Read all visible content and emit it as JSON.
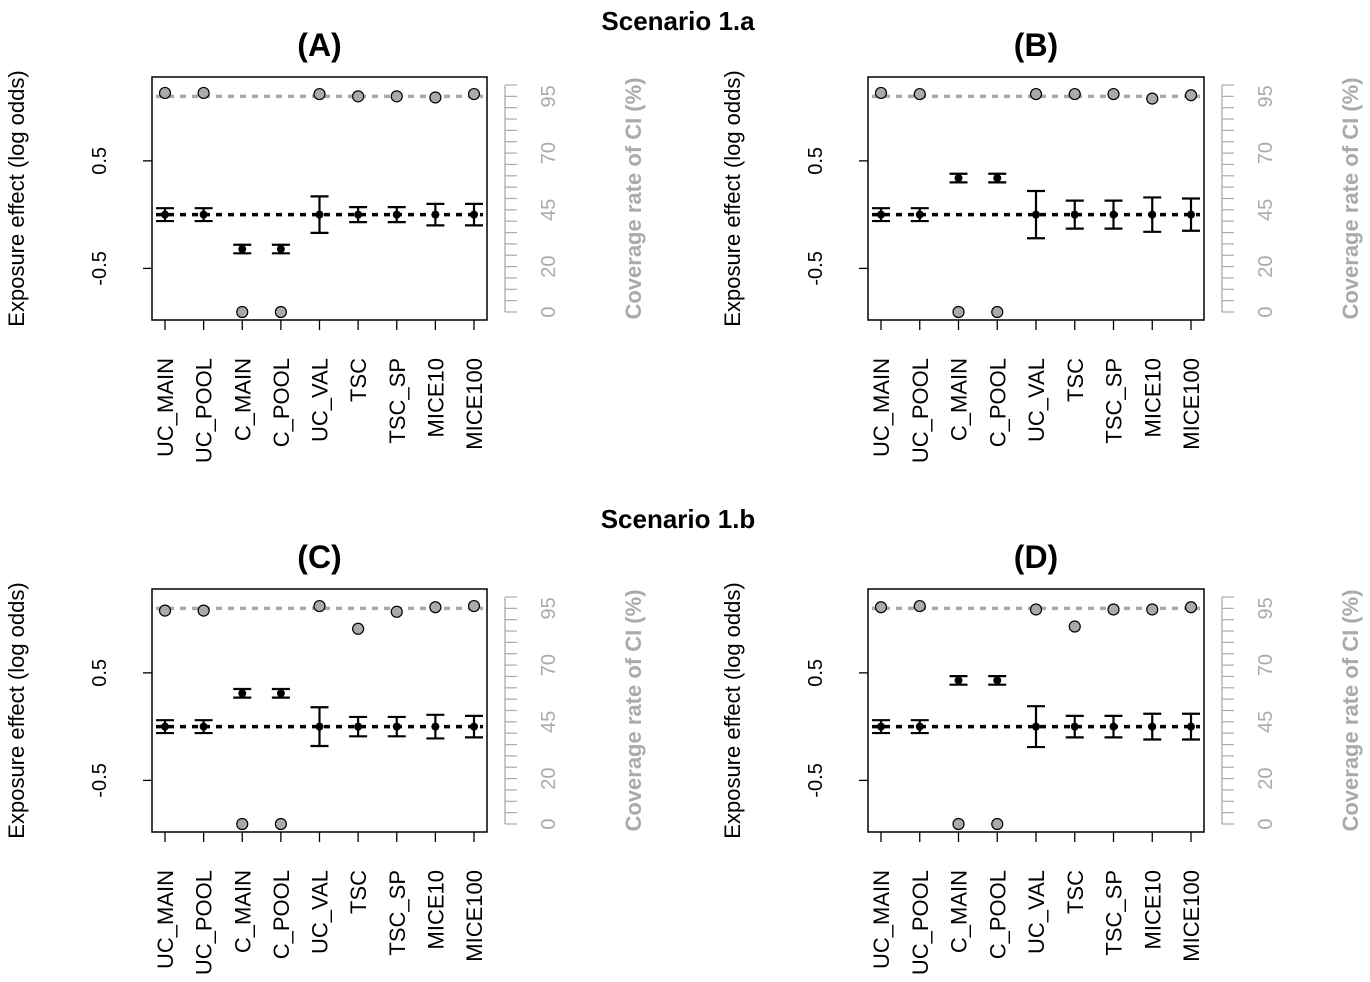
{
  "scenario_titles": [
    "Scenario 1.a",
    "Scenario 1.b"
  ],
  "methods": [
    "UC_MAIN",
    "UC_POOL",
    "C_MAIN",
    "C_POOL",
    "UC_VAL",
    "TSC",
    "TSC_SP",
    "MICE10",
    "MICE100"
  ],
  "colors": {
    "estimate": "#000000",
    "coverage_point": "#aaaaaa",
    "coverage_line": "#aaaaaa",
    "coverage_axis": "#aaaaaa"
  },
  "chart_data": [
    {
      "type": "scatter",
      "scenario": "Scenario 1.a",
      "title": "(A)",
      "ylabel": "Exposure effect (log odds)",
      "y2label": "Coverage rate of CI (%)",
      "ylim": [
        -0.98,
        1.28
      ],
      "y2lim": [
        0,
        100
      ],
      "yticks": [
        -0.5,
        0.5
      ],
      "y2ticks": [
        0,
        20,
        45,
        70,
        95
      ],
      "categories": [
        "UC_MAIN",
        "UC_POOL",
        "C_MAIN",
        "C_POOL",
        "UC_VAL",
        "TSC",
        "TSC_SP",
        "MICE10",
        "MICE100"
      ],
      "reference_line_estimate": 0,
      "reference_line_coverage": 95,
      "series": [
        {
          "name": "",
          "estimate": [
            0,
            0,
            -0.32,
            -0.32,
            0,
            0,
            0,
            0,
            0
          ],
          "ci_lower": [
            -0.06,
            -0.06,
            -0.36,
            -0.36,
            -0.17,
            -0.07,
            -0.07,
            -0.1,
            -0.1
          ],
          "ci_upper": [
            0.06,
            0.06,
            -0.28,
            -0.28,
            0.17,
            0.07,
            0.07,
            0.1,
            0.1
          ]
        },
        {
          "name": "",
          "coverage": [
            96.5,
            96.5,
            0,
            0,
            96,
            95,
            95,
            94.5,
            96
          ]
        }
      ]
    },
    {
      "type": "scatter",
      "scenario": "Scenario 1.a",
      "title": "(B)",
      "ylabel": "Exposure effect (log odds)",
      "y2label": "Coverage rate of CI (%)",
      "ylim": [
        -0.98,
        1.28
      ],
      "y2lim": [
        0,
        100
      ],
      "yticks": [
        -0.5,
        0.5
      ],
      "y2ticks": [
        0,
        20,
        45,
        70,
        95
      ],
      "categories": [
        "UC_MAIN",
        "UC_POOL",
        "C_MAIN",
        "C_POOL",
        "UC_VAL",
        "TSC",
        "TSC_SP",
        "MICE10",
        "MICE100"
      ],
      "reference_line_estimate": 0,
      "reference_line_coverage": 95,
      "series": [
        {
          "name": "",
          "estimate": [
            0,
            0,
            0.34,
            0.34,
            0,
            0,
            0,
            0,
            0
          ],
          "ci_lower": [
            -0.06,
            -0.06,
            0.3,
            0.3,
            -0.22,
            -0.13,
            -0.13,
            -0.16,
            -0.15
          ],
          "ci_upper": [
            0.06,
            0.06,
            0.38,
            0.38,
            0.22,
            0.13,
            0.13,
            0.16,
            0.15
          ]
        },
        {
          "name": "",
          "coverage": [
            96.5,
            96,
            0,
            0,
            96,
            96,
            96,
            94,
            95.5
          ]
        }
      ]
    },
    {
      "type": "scatter",
      "scenario": "Scenario 1.b",
      "title": "(C)",
      "ylabel": "Exposure effect (log odds)",
      "y2label": "Coverage rate of CI (%)",
      "ylim": [
        -0.98,
        1.28
      ],
      "y2lim": [
        0,
        100
      ],
      "yticks": [
        -0.5,
        0.5
      ],
      "y2ticks": [
        0,
        20,
        45,
        70,
        95
      ],
      "categories": [
        "UC_MAIN",
        "UC_POOL",
        "C_MAIN",
        "C_POOL",
        "UC_VAL",
        "TSC",
        "TSC_SP",
        "MICE10",
        "MICE100"
      ],
      "reference_line_estimate": 0,
      "reference_line_coverage": 95,
      "series": [
        {
          "name": "",
          "estimate": [
            0,
            0,
            0.31,
            0.31,
            0,
            0,
            0,
            0,
            0
          ],
          "ci_lower": [
            -0.06,
            -0.06,
            0.27,
            0.27,
            -0.18,
            -0.09,
            -0.09,
            -0.11,
            -0.1
          ],
          "ci_upper": [
            0.06,
            0.06,
            0.35,
            0.35,
            0.18,
            0.09,
            0.09,
            0.11,
            0.1
          ]
        },
        {
          "name": "",
          "coverage": [
            94,
            94,
            0,
            0,
            96,
            86,
            93.5,
            95.5,
            96
          ]
        }
      ]
    },
    {
      "type": "scatter",
      "scenario": "Scenario 1.b",
      "title": "(D)",
      "ylabel": "Exposure effect (log odds)",
      "y2label": "Coverage rate of CI (%)",
      "ylim": [
        -0.98,
        1.28
      ],
      "y2lim": [
        0,
        100
      ],
      "yticks": [
        -0.5,
        0.5
      ],
      "y2ticks": [
        0,
        20,
        45,
        70,
        95
      ],
      "categories": [
        "UC_MAIN",
        "UC_POOL",
        "C_MAIN",
        "C_POOL",
        "UC_VAL",
        "TSC",
        "TSC_SP",
        "MICE10",
        "MICE100"
      ],
      "reference_line_estimate": 0,
      "reference_line_coverage": 95,
      "series": [
        {
          "name": "",
          "estimate": [
            0,
            0,
            0.43,
            0.43,
            0,
            0,
            0,
            0,
            0
          ],
          "ci_lower": [
            -0.06,
            -0.06,
            0.39,
            0.39,
            -0.19,
            -0.1,
            -0.1,
            -0.12,
            -0.12
          ],
          "ci_upper": [
            0.06,
            0.06,
            0.47,
            0.47,
            0.19,
            0.1,
            0.1,
            0.12,
            0.12
          ]
        },
        {
          "name": "",
          "coverage": [
            95.5,
            96,
            0,
            0,
            94.5,
            87,
            94.5,
            94.5,
            95.5
          ]
        }
      ]
    }
  ]
}
